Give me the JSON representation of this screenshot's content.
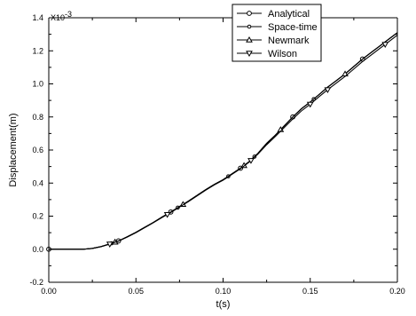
{
  "chart_data": {
    "type": "line",
    "xlabel": "t(s)",
    "ylabel": "Displacement(m)",
    "y_multiplier": "X10",
    "y_multiplier_exp": "-3",
    "xlim": [
      0.0,
      0.2
    ],
    "ylim": [
      -0.2,
      1.4
    ],
    "xticks": [
      "0.00",
      "0.05",
      "0.10",
      "0.15",
      "0.20"
    ],
    "yticks": [
      "-0.2",
      "0.0",
      "0.2",
      "0.4",
      "0.6",
      "0.8",
      "1.0",
      "1.2",
      "1.4"
    ],
    "grid": false,
    "legend_position": "top-right",
    "series": [
      {
        "name": "Analytical",
        "marker": "circle",
        "x": [
          0,
          0.005,
          0.01,
          0.015,
          0.02,
          0.025,
          0.03,
          0.035,
          0.04,
          0.045,
          0.05,
          0.055,
          0.06,
          0.065,
          0.07,
          0.075,
          0.08,
          0.085,
          0.09,
          0.095,
          0.1,
          0.105,
          0.11,
          0.115,
          0.12,
          0.125,
          0.13,
          0.135,
          0.14,
          0.145,
          0.15,
          0.155,
          0.16,
          0.165,
          0.17,
          0.175,
          0.18,
          0.185,
          0.19,
          0.195,
          0.2
        ],
        "y": [
          0,
          0,
          0,
          0,
          0.0,
          0.005,
          0.016,
          0.032,
          0.05,
          0.075,
          0.102,
          0.132,
          0.162,
          0.195,
          0.225,
          0.258,
          0.29,
          0.325,
          0.36,
          0.392,
          0.42,
          0.455,
          0.49,
          0.53,
          0.58,
          0.64,
          0.69,
          0.745,
          0.8,
          0.85,
          0.89,
          0.935,
          0.98,
          1.02,
          1.06,
          1.105,
          1.15,
          1.19,
          1.23,
          1.27,
          1.31
        ],
        "marker_x": [
          0,
          0.04,
          0.07,
          0.11,
          0.14,
          0.18
        ]
      },
      {
        "name": "Space-time",
        "marker": "circle-small",
        "x": [
          0,
          0.005,
          0.01,
          0.015,
          0.02,
          0.025,
          0.03,
          0.035,
          0.04,
          0.045,
          0.05,
          0.055,
          0.06,
          0.065,
          0.07,
          0.075,
          0.08,
          0.085,
          0.09,
          0.095,
          0.1,
          0.105,
          0.11,
          0.115,
          0.12,
          0.125,
          0.13,
          0.135,
          0.14,
          0.145,
          0.15,
          0.155,
          0.16,
          0.165,
          0.17,
          0.175,
          0.18,
          0.185,
          0.19,
          0.195,
          0.2
        ],
        "y": [
          0,
          0,
          0,
          0,
          0.0,
          0.005,
          0.016,
          0.032,
          0.05,
          0.075,
          0.102,
          0.132,
          0.162,
          0.195,
          0.225,
          0.258,
          0.29,
          0.325,
          0.36,
          0.392,
          0.42,
          0.455,
          0.49,
          0.53,
          0.58,
          0.64,
          0.69,
          0.745,
          0.8,
          0.85,
          0.89,
          0.935,
          0.98,
          1.02,
          1.06,
          1.105,
          1.15,
          1.19,
          1.23,
          1.27,
          1.31
        ],
        "marker_x": [
          0.036,
          0.074,
          0.103,
          0.118,
          0.152
        ]
      },
      {
        "name": "Newmark",
        "marker": "triangle-up",
        "x": [
          0,
          0.005,
          0.01,
          0.015,
          0.02,
          0.025,
          0.03,
          0.035,
          0.04,
          0.045,
          0.05,
          0.055,
          0.06,
          0.065,
          0.07,
          0.075,
          0.08,
          0.085,
          0.09,
          0.095,
          0.1,
          0.105,
          0.11,
          0.115,
          0.12,
          0.125,
          0.13,
          0.135,
          0.14,
          0.145,
          0.15,
          0.155,
          0.16,
          0.165,
          0.17,
          0.175,
          0.18,
          0.185,
          0.19,
          0.195,
          0.2
        ],
        "y": [
          0,
          0,
          0,
          0,
          0.0,
          0.005,
          0.016,
          0.032,
          0.05,
          0.075,
          0.102,
          0.132,
          0.162,
          0.195,
          0.225,
          0.258,
          0.29,
          0.325,
          0.36,
          0.392,
          0.42,
          0.455,
          0.49,
          0.53,
          0.58,
          0.64,
          0.69,
          0.745,
          0.8,
          0.85,
          0.89,
          0.935,
          0.98,
          1.02,
          1.06,
          1.105,
          1.15,
          1.19,
          1.23,
          1.27,
          1.31
        ],
        "marker_x": [
          0.038,
          0.077,
          0.112,
          0.133,
          0.17
        ]
      },
      {
        "name": "Wilson",
        "marker": "triangle-down",
        "x": [
          0,
          0.005,
          0.01,
          0.015,
          0.02,
          0.025,
          0.03,
          0.035,
          0.04,
          0.045,
          0.05,
          0.055,
          0.06,
          0.065,
          0.07,
          0.075,
          0.08,
          0.085,
          0.09,
          0.095,
          0.1,
          0.105,
          0.11,
          0.115,
          0.12,
          0.125,
          0.13,
          0.135,
          0.14,
          0.145,
          0.15,
          0.155,
          0.16,
          0.165,
          0.17,
          0.175,
          0.18,
          0.185,
          0.19,
          0.195,
          0.2
        ],
        "y": [
          0,
          0,
          0,
          0,
          0.0,
          0.004,
          0.015,
          0.031,
          0.049,
          0.073,
          0.1,
          0.13,
          0.16,
          0.192,
          0.222,
          0.255,
          0.287,
          0.322,
          0.357,
          0.389,
          0.417,
          0.452,
          0.487,
          0.527,
          0.575,
          0.632,
          0.682,
          0.735,
          0.788,
          0.837,
          0.877,
          0.922,
          0.965,
          1.005,
          1.045,
          1.09,
          1.135,
          1.175,
          1.215,
          1.255,
          1.295
        ],
        "marker_x": [
          0.035,
          0.068,
          0.116,
          0.15,
          0.16,
          0.193
        ]
      }
    ]
  }
}
